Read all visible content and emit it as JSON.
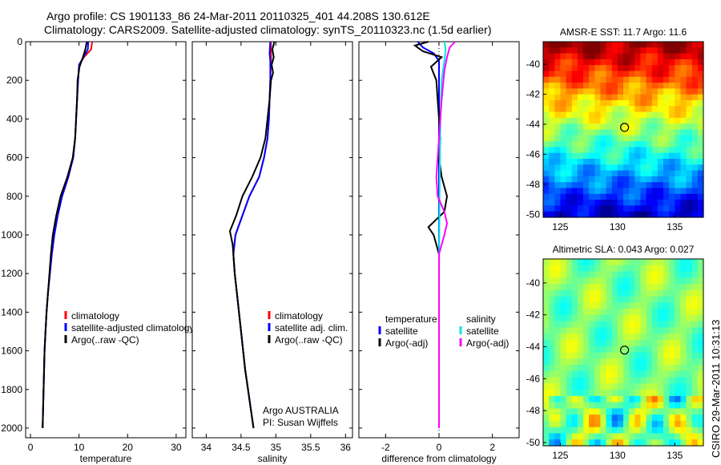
{
  "header": {
    "line1": "Argo profile: CS 1901133_86 24-Mar-2011 20110325_401 44.208S 130.612E",
    "line2": "Climatology: CARS2009. Satellite-adjusted climatology: synTS_20110323.nc (1.5d earlier)"
  },
  "colors": {
    "climatology": "#ff0000",
    "satellite": "#0000ff",
    "argo": "#000000",
    "sal_satellite": "#00e5e5",
    "sal_argo": "#ff00ff"
  },
  "chart_data": [
    {
      "type": "line",
      "xlabel": "temperature",
      "ylabel": "",
      "xlim": [
        -1,
        32
      ],
      "ylim": [
        2050,
        0
      ],
      "xticks": [
        0,
        10,
        20,
        30
      ],
      "yticks": [
        0,
        200,
        400,
        600,
        800,
        1000,
        1200,
        1400,
        1600,
        1800,
        2000
      ],
      "legend_position": "lower-right",
      "series": [
        {
          "name": "climatology",
          "color": "#ff0000",
          "points": [
            [
              12.7,
              0
            ],
            [
              12.5,
              40
            ],
            [
              11.0,
              80
            ],
            [
              10.0,
              120
            ],
            [
              9.8,
              200
            ],
            [
              9.6,
              300
            ],
            [
              9.4,
              400
            ],
            [
              9.2,
              500
            ],
            [
              8.8,
              600
            ],
            [
              7.8,
              700
            ],
            [
              6.5,
              800
            ],
            [
              5.6,
              900
            ],
            [
              4.9,
              1000
            ],
            [
              4.4,
              1100
            ],
            [
              4.0,
              1200
            ],
            [
              3.6,
              1300
            ],
            [
              3.3,
              1400
            ],
            [
              3.1,
              1500
            ],
            [
              2.9,
              1600
            ],
            [
              2.8,
              1700
            ],
            [
              2.7,
              1800
            ],
            [
              2.6,
              1900
            ],
            [
              2.5,
              2000
            ]
          ]
        },
        {
          "name": "satellite-adjusted climatology",
          "color": "#0000ff",
          "points": [
            [
              11.9,
              0
            ],
            [
              11.8,
              40
            ],
            [
              10.9,
              80
            ],
            [
              10.0,
              120
            ],
            [
              9.8,
              200
            ],
            [
              9.6,
              300
            ],
            [
              9.4,
              400
            ],
            [
              9.2,
              500
            ],
            [
              8.8,
              600
            ],
            [
              7.8,
              700
            ],
            [
              6.5,
              800
            ],
            [
              5.6,
              900
            ],
            [
              4.9,
              1000
            ],
            [
              4.4,
              1100
            ],
            [
              4.0,
              1200
            ],
            [
              3.6,
              1300
            ],
            [
              3.3,
              1400
            ],
            [
              3.1,
              1500
            ],
            [
              2.9,
              1600
            ],
            [
              2.8,
              1700
            ],
            [
              2.7,
              1800
            ],
            [
              2.6,
              1900
            ],
            [
              2.5,
              2000
            ]
          ]
        },
        {
          "name": "Argo(..raw -QC)",
          "color": "#000000",
          "points": [
            [
              11.6,
              0
            ],
            [
              11.3,
              40
            ],
            [
              10.8,
              80
            ],
            [
              10.1,
              130
            ],
            [
              9.7,
              200
            ],
            [
              9.6,
              300
            ],
            [
              9.4,
              400
            ],
            [
              9.2,
              500
            ],
            [
              8.7,
              600
            ],
            [
              7.6,
              700
            ],
            [
              6.2,
              800
            ],
            [
              5.3,
              900
            ],
            [
              4.6,
              1000
            ],
            [
              4.2,
              1100
            ],
            [
              3.9,
              1200
            ],
            [
              3.6,
              1300
            ],
            [
              3.3,
              1400
            ],
            [
              3.1,
              1500
            ],
            [
              2.9,
              1600
            ],
            [
              2.8,
              1700
            ],
            [
              2.7,
              1800
            ],
            [
              2.6,
              1900
            ],
            [
              2.5,
              2000
            ]
          ]
        }
      ]
    },
    {
      "type": "line",
      "xlabel": "salinity",
      "ylabel": "",
      "xlim": [
        33.8,
        36.1
      ],
      "ylim": [
        2050,
        0
      ],
      "xticks": [
        34,
        34.5,
        35,
        35.5,
        36
      ],
      "legend_position": "lower-right",
      "annotation": [
        "Argo AUSTRALIA",
        "PI: Susan Wijffels"
      ],
      "series": [
        {
          "name": "climatology",
          "color": "#ff0000",
          "points": [
            [
              34.93,
              0
            ],
            [
              34.93,
              60
            ],
            [
              34.93,
              100
            ],
            [
              34.92,
              200
            ],
            [
              34.91,
              300
            ],
            [
              34.9,
              400
            ],
            [
              34.88,
              500
            ],
            [
              34.83,
              600
            ],
            [
              34.76,
              700
            ],
            [
              34.62,
              800
            ],
            [
              34.52,
              900
            ],
            [
              34.42,
              1000
            ],
            [
              34.39,
              1100
            ],
            [
              34.41,
              1200
            ],
            [
              34.44,
              1300
            ],
            [
              34.47,
              1400
            ],
            [
              34.5,
              1500
            ],
            [
              34.53,
              1600
            ],
            [
              34.56,
              1700
            ],
            [
              34.6,
              1800
            ],
            [
              34.64,
              1900
            ],
            [
              34.68,
              2000
            ]
          ]
        },
        {
          "name": "satellite adj. clim.",
          "color": "#0000ff",
          "points": [
            [
              34.92,
              0
            ],
            [
              34.91,
              60
            ],
            [
              34.92,
              100
            ],
            [
              34.92,
              200
            ],
            [
              34.91,
              300
            ],
            [
              34.9,
              400
            ],
            [
              34.88,
              500
            ],
            [
              34.83,
              600
            ],
            [
              34.76,
              700
            ],
            [
              34.62,
              800
            ],
            [
              34.52,
              900
            ],
            [
              34.42,
              1000
            ],
            [
              34.39,
              1100
            ],
            [
              34.41,
              1200
            ],
            [
              34.44,
              1300
            ],
            [
              34.47,
              1400
            ],
            [
              34.5,
              1500
            ],
            [
              34.53,
              1600
            ],
            [
              34.56,
              1700
            ],
            [
              34.6,
              1800
            ],
            [
              34.64,
              1900
            ],
            [
              34.68,
              2000
            ]
          ]
        },
        {
          "name": "Argo(..raw -QC)",
          "color": "#000000",
          "points": [
            [
              34.98,
              0
            ],
            [
              34.95,
              40
            ],
            [
              34.97,
              80
            ],
            [
              34.94,
              120
            ],
            [
              34.96,
              160
            ],
            [
              34.93,
              200
            ],
            [
              34.91,
              300
            ],
            [
              34.88,
              400
            ],
            [
              34.85,
              500
            ],
            [
              34.78,
              600
            ],
            [
              34.66,
              700
            ],
            [
              34.52,
              800
            ],
            [
              34.43,
              900
            ],
            [
              34.34,
              980
            ],
            [
              34.38,
              1050
            ],
            [
              34.39,
              1100
            ],
            [
              34.41,
              1200
            ],
            [
              34.44,
              1300
            ],
            [
              34.47,
              1400
            ],
            [
              34.5,
              1500
            ],
            [
              34.53,
              1600
            ],
            [
              34.56,
              1700
            ],
            [
              34.6,
              1800
            ],
            [
              34.64,
              1900
            ],
            [
              34.68,
              2000
            ]
          ]
        }
      ]
    },
    {
      "type": "line",
      "xlabel": "difference from climatology",
      "ylabel": "",
      "xlim": [
        -3,
        3
      ],
      "ylim": [
        2050,
        0
      ],
      "xticks": [
        -2,
        0,
        2
      ],
      "legend_position": "lower-center",
      "legend_headers": [
        "temperature",
        "salinity"
      ],
      "series": [
        {
          "name": "satellite",
          "group": "temperature",
          "color": "#0000ff",
          "points": [
            [
              -0.8,
              0
            ],
            [
              -0.6,
              30
            ],
            [
              -0.2,
              60
            ],
            [
              0.0,
              100
            ],
            [
              0.0,
              200
            ],
            [
              0.0,
              400
            ],
            [
              0.0,
              800
            ],
            [
              0.0,
              1200
            ],
            [
              0.0,
              1600
            ],
            [
              0.0,
              2000
            ]
          ]
        },
        {
          "name": "Argo(-adj)",
          "group": "temperature",
          "color": "#000000",
          "points": [
            [
              -0.4,
              0
            ],
            [
              -0.9,
              20
            ],
            [
              -0.6,
              50
            ],
            [
              0.1,
              80
            ],
            [
              -0.3,
              130
            ],
            [
              -0.1,
              200
            ],
            [
              -0.05,
              300
            ],
            [
              0.0,
              400
            ],
            [
              0.05,
              500
            ],
            [
              0.0,
              600
            ],
            [
              0.1,
              700
            ],
            [
              0.3,
              800
            ],
            [
              0.2,
              880
            ],
            [
              -0.1,
              920
            ],
            [
              -0.4,
              960
            ],
            [
              -0.2,
              1000
            ],
            [
              -0.1,
              1050
            ],
            [
              0.0,
              1100
            ],
            [
              0.0,
              1200
            ],
            [
              0.0,
              1600
            ],
            [
              0.0,
              2000
            ]
          ]
        },
        {
          "name": "satellite",
          "group": "salinity",
          "color": "#00e5e5",
          "points": [
            [
              0.2,
              0
            ],
            [
              0.25,
              40
            ],
            [
              0.2,
              100
            ],
            [
              0.1,
              200
            ],
            [
              0.05,
              400
            ],
            [
              0.02,
              800
            ],
            [
              0.0,
              1200
            ],
            [
              0.0,
              1600
            ],
            [
              0.0,
              2000
            ]
          ]
        },
        {
          "name": "Argo(-adj)",
          "group": "salinity",
          "color": "#ff00ff",
          "points": [
            [
              0.6,
              0
            ],
            [
              0.4,
              30
            ],
            [
              0.3,
              80
            ],
            [
              0.2,
              150
            ],
            [
              0.1,
              300
            ],
            [
              0.0,
              500
            ],
            [
              -0.1,
              700
            ],
            [
              -0.05,
              800
            ],
            [
              0.2,
              880
            ],
            [
              0.3,
              940
            ],
            [
              0.2,
              1000
            ],
            [
              0.0,
              1100
            ],
            [
              0.0,
              1200
            ],
            [
              0.0,
              1600
            ],
            [
              0.0,
              2000
            ]
          ]
        }
      ]
    },
    {
      "type": "heatmap",
      "title": "AMSR-E SST: 11.7 Argo: 11.6",
      "xticks": [
        125,
        130,
        135
      ],
      "yticks": [
        -40,
        -42,
        -44,
        -46,
        -48,
        -50
      ],
      "xlim": [
        123.5,
        137.5
      ],
      "ylim": [
        -50.2,
        -38.5
      ],
      "marker": [
        130.612,
        -44.208
      ]
    },
    {
      "type": "heatmap",
      "title": "Altimetric SLA: 0.043 Argo: 0.027",
      "xticks": [
        125,
        130,
        135
      ],
      "yticks": [
        -40,
        -42,
        -44,
        -46,
        -48,
        -50
      ],
      "xlim": [
        123.5,
        137.5
      ],
      "ylim": [
        -50.2,
        -38.5
      ],
      "marker": [
        130.612,
        -44.208
      ]
    }
  ],
  "side_label": "CSIRO 29-Mar-2011 10:31:13"
}
